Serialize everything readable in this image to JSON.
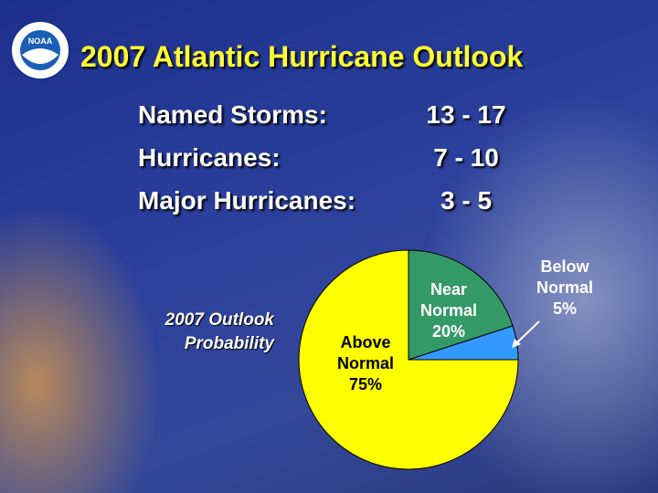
{
  "slide": {
    "logo_text": "NOAA",
    "title": "2007 Atlantic Hurricane Outlook",
    "stats": [
      [
        "Named Storms:",
        "13 - 17"
      ],
      [
        "Hurricanes:",
        "7 - 10"
      ],
      [
        "Major Hurricanes:",
        "3 - 5"
      ]
    ]
  },
  "chart_data": {
    "type": "pie",
    "title": "2007 Outlook Probability",
    "categories": [
      "Near Normal",
      "Below Normal",
      "Above Normal"
    ],
    "values": [
      20,
      5,
      75
    ],
    "value_labels": [
      "20%",
      "5%",
      "75%"
    ],
    "colors": [
      "#339966",
      "#3399ff",
      "#ffff00"
    ]
  }
}
